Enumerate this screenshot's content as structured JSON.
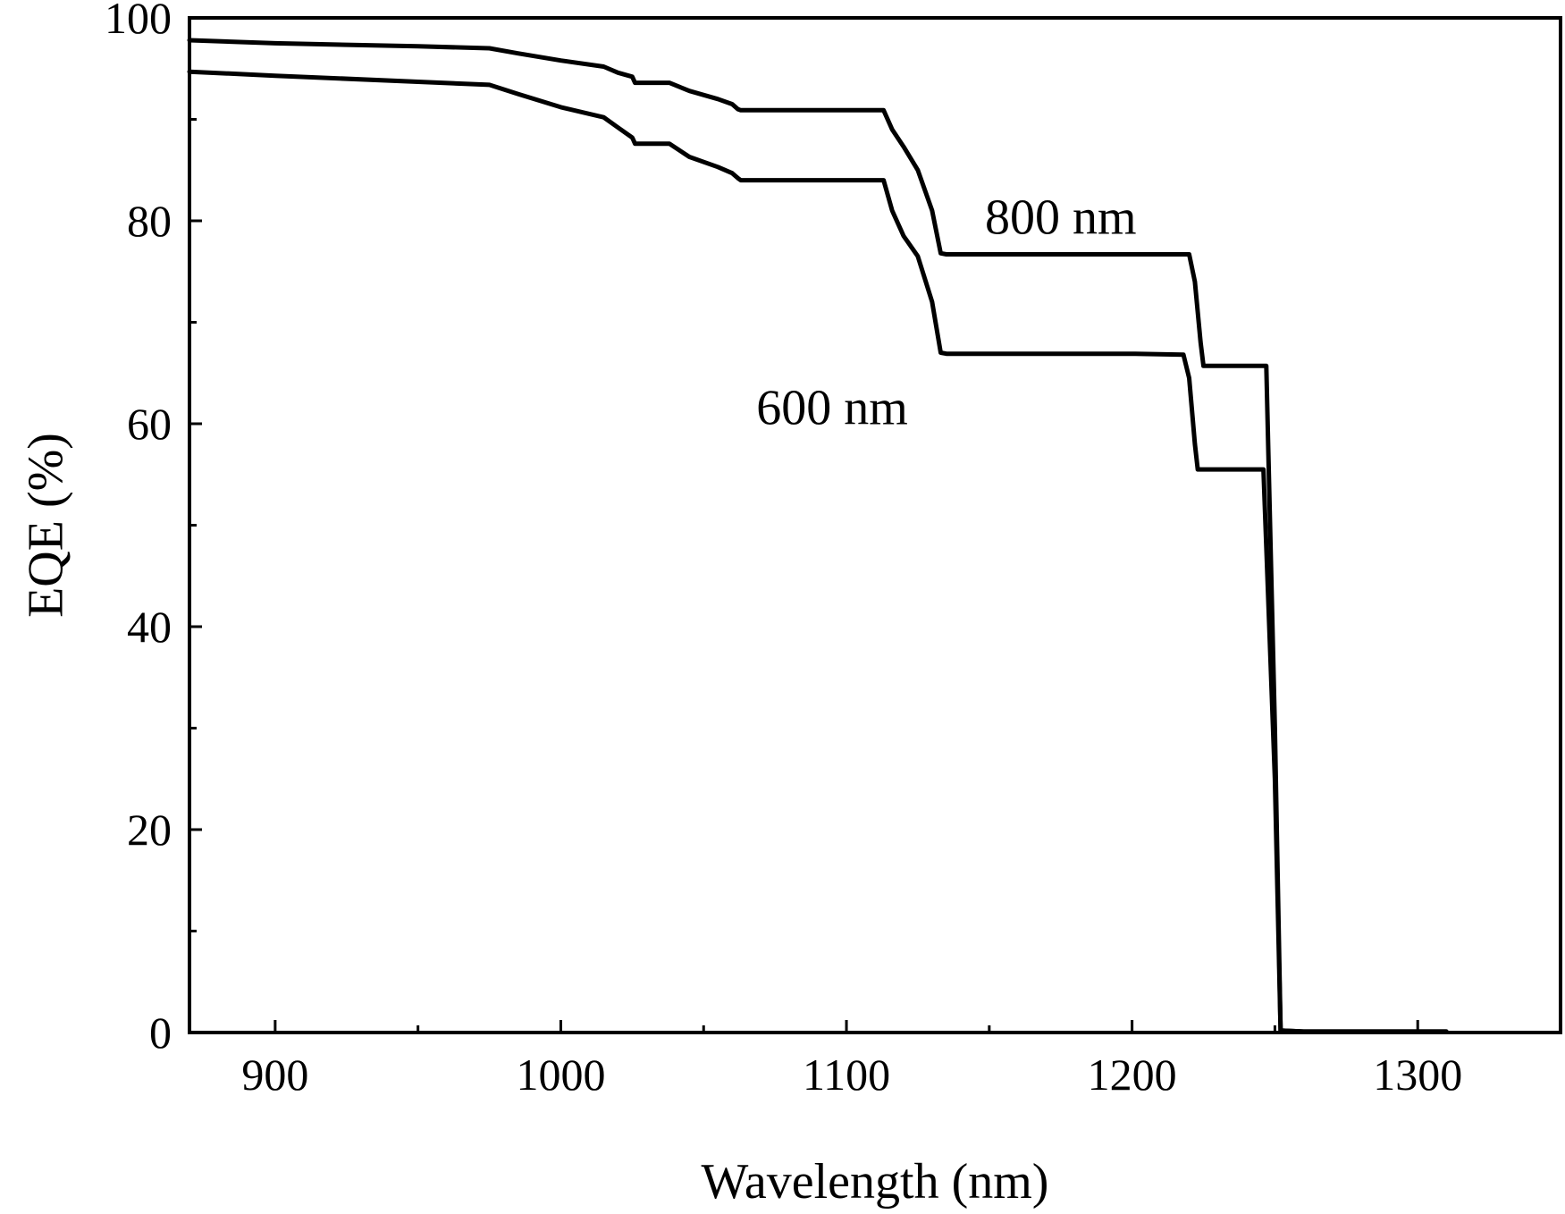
{
  "chart_data": {
    "type": "line",
    "xlabel": "Wavelength (nm)",
    "ylabel": "EQE (%)",
    "xlim": [
      870,
      1350
    ],
    "ylim": [
      0,
      100
    ],
    "x_ticks": [
      900,
      1000,
      1100,
      1200,
      1300
    ],
    "y_ticks": [
      0,
      20,
      40,
      60,
      80,
      100
    ],
    "x_minor_ticks": [
      950,
      1050,
      1150,
      1250
    ],
    "y_minor_ticks": [
      10,
      30,
      50,
      70,
      90
    ],
    "grid": false,
    "legend": "none",
    "series": [
      {
        "name": "800 nm",
        "color": "#000000",
        "x": [
          870,
          900,
          950,
          975,
          985,
          1000,
          1015,
          1020,
          1025,
          1026,
          1038,
          1045,
          1055,
          1060,
          1062,
          1063,
          1100,
          1113,
          1116,
          1120,
          1125,
          1130,
          1133,
          1135,
          1150,
          1200,
          1220,
          1222,
          1224,
          1225,
          1247,
          1250,
          1252,
          1260,
          1300,
          1310
        ],
        "y": [
          97.8,
          97.5,
          97.2,
          97.0,
          96.5,
          95.8,
          95.2,
          94.6,
          94.2,
          93.6,
          93.6,
          92.8,
          92.0,
          91.5,
          91.0,
          90.9,
          90.9,
          90.9,
          89.0,
          87.3,
          85.0,
          81.0,
          76.8,
          76.7,
          76.7,
          76.7,
          76.7,
          74.0,
          68.0,
          65.7,
          65.7,
          30.0,
          0.2,
          0.1,
          0.1,
          0.1
        ]
      },
      {
        "name": "600 nm",
        "color": "#000000",
        "x": [
          870,
          900,
          950,
          975,
          985,
          1000,
          1015,
          1020,
          1025,
          1026,
          1038,
          1045,
          1055,
          1060,
          1062,
          1063,
          1100,
          1113,
          1116,
          1120,
          1125,
          1130,
          1133,
          1135,
          1150,
          1200,
          1218,
          1220,
          1222,
          1223,
          1246,
          1250,
          1252,
          1260,
          1300,
          1310
        ],
        "y": [
          94.7,
          94.3,
          93.7,
          93.4,
          92.5,
          91.2,
          90.2,
          89.2,
          88.2,
          87.6,
          87.6,
          86.3,
          85.3,
          84.7,
          84.2,
          84.0,
          84.0,
          84.0,
          81.0,
          78.5,
          76.5,
          72.0,
          67.0,
          66.9,
          66.9,
          66.9,
          66.8,
          64.5,
          58.0,
          55.5,
          55.5,
          25.0,
          0.2,
          0.1,
          0.1,
          0.1
        ]
      }
    ],
    "annotations": [
      {
        "text": "800 nm",
        "x": 1175,
        "y": 80.5
      },
      {
        "text": "600 nm",
        "x": 1095,
        "y": 61.7
      }
    ]
  }
}
